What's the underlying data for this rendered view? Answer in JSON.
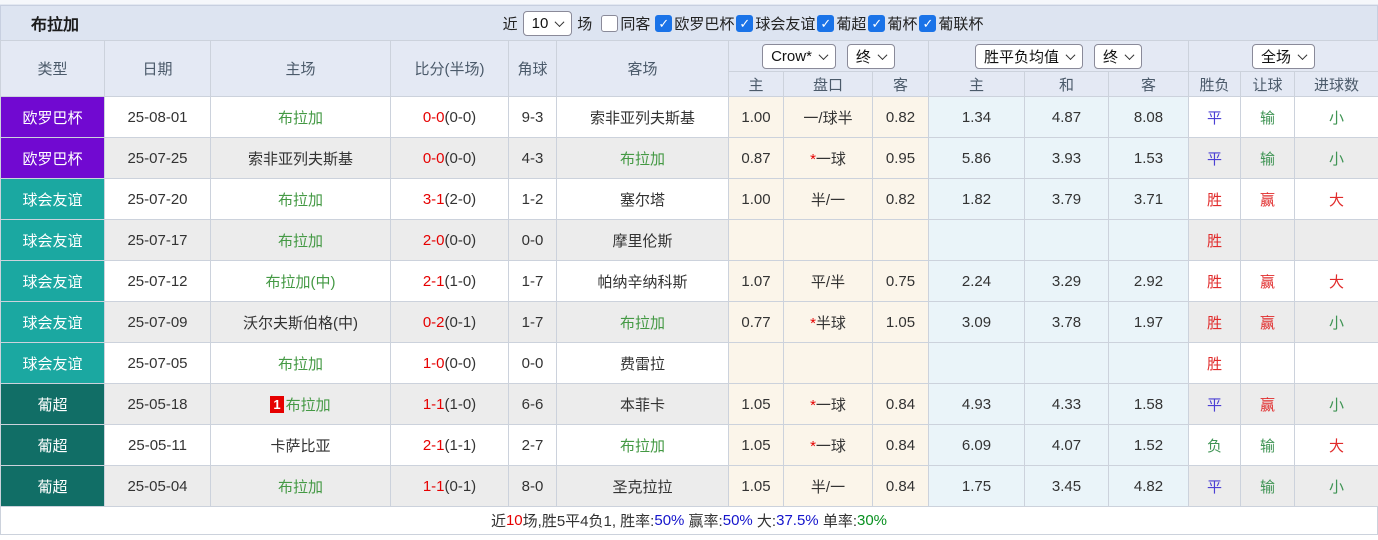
{
  "header": {
    "title": "布拉加",
    "recent_label": "近",
    "recent_value": "10",
    "recent_suffix": "场",
    "same_label": "同客",
    "same_checked": false,
    "filters": [
      {
        "label": "欧罗巴杯",
        "checked": true
      },
      {
        "label": "球会友谊",
        "checked": true
      },
      {
        "label": "葡超",
        "checked": true
      },
      {
        "label": "葡杯",
        "checked": true
      },
      {
        "label": "葡联杯",
        "checked": true
      }
    ]
  },
  "icons": {
    "check": "✓",
    "select_chevron": "v"
  },
  "table": {
    "columns": [
      "类型",
      "日期",
      "主场",
      "比分(半场)",
      "角球",
      "客场"
    ],
    "selects": {
      "odds_source": "Crow*",
      "odds_time": "终",
      "avg_source": "胜平负均值",
      "avg_time": "终",
      "scope": "全场"
    },
    "sub_headers": [
      "主",
      "盘口",
      "客",
      "主",
      "和",
      "客",
      "胜负",
      "让球",
      "进球数"
    ],
    "rows": [
      {
        "comp": "欧罗巴杯",
        "comp_key": "europa",
        "date": "25-08-01",
        "home": {
          "name": "布拉加",
          "team": true,
          "rank": ""
        },
        "score": {
          "ft": "0-0",
          "ht": "(0-0)"
        },
        "corner": "9-3",
        "away": {
          "name": "索非亚列夫斯基",
          "team": false
        },
        "crow": {
          "h": "1.00",
          "star": false,
          "line": "一/球半",
          "a": "0.82"
        },
        "avg": {
          "h": "1.34",
          "d": "4.87",
          "a": "8.08"
        },
        "result": {
          "text": "平",
          "c": "blue"
        },
        "handicap_result": {
          "text": "输",
          "c": "green"
        },
        "goals": {
          "text": "小",
          "c": "green"
        }
      },
      {
        "comp": "欧罗巴杯",
        "comp_key": "europa",
        "date": "25-07-25",
        "home": {
          "name": "索非亚列夫斯基",
          "team": false,
          "rank": ""
        },
        "score": {
          "ft": "0-0",
          "ht": "(0-0)"
        },
        "corner": "4-3",
        "away": {
          "name": "布拉加",
          "team": true
        },
        "crow": {
          "h": "0.87",
          "star": true,
          "line": "一球",
          "a": "0.95"
        },
        "avg": {
          "h": "5.86",
          "d": "3.93",
          "a": "1.53"
        },
        "result": {
          "text": "平",
          "c": "blue"
        },
        "handicap_result": {
          "text": "输",
          "c": "green"
        },
        "goals": {
          "text": "小",
          "c": "green"
        }
      },
      {
        "comp": "球会友谊",
        "comp_key": "friendly",
        "date": "25-07-20",
        "home": {
          "name": "布拉加",
          "team": true,
          "rank": ""
        },
        "score": {
          "ft": "3-1",
          "ht": "(2-0)"
        },
        "corner": "1-2",
        "away": {
          "name": "塞尔塔",
          "team": false
        },
        "crow": {
          "h": "1.00",
          "star": false,
          "line": "半/一",
          "a": "0.82"
        },
        "avg": {
          "h": "1.82",
          "d": "3.79",
          "a": "3.71"
        },
        "result": {
          "text": "胜",
          "c": "red"
        },
        "handicap_result": {
          "text": "赢",
          "c": "red"
        },
        "goals": {
          "text": "大",
          "c": "red"
        }
      },
      {
        "comp": "球会友谊",
        "comp_key": "friendly",
        "date": "25-07-17",
        "home": {
          "name": "布拉加",
          "team": true,
          "rank": ""
        },
        "score": {
          "ft": "2-0",
          "ht": "(0-0)"
        },
        "corner": "0-0",
        "away": {
          "name": "摩里伦斯",
          "team": false
        },
        "crow": {
          "h": "",
          "star": false,
          "line": "",
          "a": ""
        },
        "avg": {
          "h": "",
          "d": "",
          "a": ""
        },
        "result": {
          "text": "胜",
          "c": "red"
        },
        "handicap_result": {
          "text": "",
          "c": ""
        },
        "goals": {
          "text": "",
          "c": ""
        }
      },
      {
        "comp": "球会友谊",
        "comp_key": "friendly",
        "date": "25-07-12",
        "home": {
          "name": "布拉加(中)",
          "team": true,
          "rank": ""
        },
        "score": {
          "ft": "2-1",
          "ht": "(1-0)"
        },
        "corner": "1-7",
        "away": {
          "name": "帕纳辛纳科斯",
          "team": false
        },
        "crow": {
          "h": "1.07",
          "star": false,
          "line": "平/半",
          "a": "0.75"
        },
        "avg": {
          "h": "2.24",
          "d": "3.29",
          "a": "2.92"
        },
        "result": {
          "text": "胜",
          "c": "red"
        },
        "handicap_result": {
          "text": "赢",
          "c": "red"
        },
        "goals": {
          "text": "大",
          "c": "red"
        }
      },
      {
        "comp": "球会友谊",
        "comp_key": "friendly",
        "date": "25-07-09",
        "home": {
          "name": "沃尔夫斯伯格(中)",
          "team": false,
          "rank": ""
        },
        "score": {
          "ft": "0-2",
          "ht": "(0-1)"
        },
        "corner": "1-7",
        "away": {
          "name": "布拉加",
          "team": true
        },
        "crow": {
          "h": "0.77",
          "star": true,
          "line": "半球",
          "a": "1.05"
        },
        "avg": {
          "h": "3.09",
          "d": "3.78",
          "a": "1.97"
        },
        "result": {
          "text": "胜",
          "c": "red"
        },
        "handicap_result": {
          "text": "赢",
          "c": "red"
        },
        "goals": {
          "text": "小",
          "c": "green"
        }
      },
      {
        "comp": "球会友谊",
        "comp_key": "friendly",
        "date": "25-07-05",
        "home": {
          "name": "布拉加",
          "team": true,
          "rank": ""
        },
        "score": {
          "ft": "1-0",
          "ht": "(0-0)"
        },
        "corner": "0-0",
        "away": {
          "name": "费雷拉",
          "team": false
        },
        "crow": {
          "h": "",
          "star": false,
          "line": "",
          "a": ""
        },
        "avg": {
          "h": "",
          "d": "",
          "a": ""
        },
        "result": {
          "text": "胜",
          "c": "red"
        },
        "handicap_result": {
          "text": "",
          "c": ""
        },
        "goals": {
          "text": "",
          "c": ""
        }
      },
      {
        "comp": "葡超",
        "comp_key": "liga",
        "date": "25-05-18",
        "home": {
          "name": "布拉加",
          "team": true,
          "rank": "1"
        },
        "score": {
          "ft": "1-1",
          "ht": "(1-0)"
        },
        "corner": "6-6",
        "away": {
          "name": "本菲卡",
          "team": false
        },
        "crow": {
          "h": "1.05",
          "star": true,
          "line": "一球",
          "a": "0.84"
        },
        "avg": {
          "h": "4.93",
          "d": "4.33",
          "a": "1.58"
        },
        "result": {
          "text": "平",
          "c": "blue"
        },
        "handicap_result": {
          "text": "赢",
          "c": "red"
        },
        "goals": {
          "text": "小",
          "c": "green"
        }
      },
      {
        "comp": "葡超",
        "comp_key": "liga",
        "date": "25-05-11",
        "home": {
          "name": "卡萨比亚",
          "team": false,
          "rank": ""
        },
        "score": {
          "ft": "2-1",
          "ht": "(1-1)"
        },
        "corner": "2-7",
        "away": {
          "name": "布拉加",
          "team": true
        },
        "crow": {
          "h": "1.05",
          "star": true,
          "line": "一球",
          "a": "0.84"
        },
        "avg": {
          "h": "6.09",
          "d": "4.07",
          "a": "1.52"
        },
        "result": {
          "text": "负",
          "c": "green"
        },
        "handicap_result": {
          "text": "输",
          "c": "green"
        },
        "goals": {
          "text": "大",
          "c": "red"
        }
      },
      {
        "comp": "葡超",
        "comp_key": "liga",
        "date": "25-05-04",
        "home": {
          "name": "布拉加",
          "team": true,
          "rank": ""
        },
        "score": {
          "ft": "1-1",
          "ht": "(0-1)"
        },
        "corner": "8-0",
        "away": {
          "name": "圣克拉拉",
          "team": false
        },
        "crow": {
          "h": "1.05",
          "star": false,
          "line": "半/一",
          "a": "0.84"
        },
        "avg": {
          "h": "1.75",
          "d": "3.45",
          "a": "4.82"
        },
        "result": {
          "text": "平",
          "c": "blue"
        },
        "handicap_result": {
          "text": "输",
          "c": "green"
        },
        "goals": {
          "text": "小",
          "c": "green"
        }
      }
    ]
  },
  "summary": {
    "segments": [
      {
        "text": "近",
        "c": "dark"
      },
      {
        "text": "10",
        "c": "red"
      },
      {
        "text": "场,胜5平4负1, 胜率:",
        "c": "dark"
      },
      {
        "text": "50%",
        "c": "blue"
      },
      {
        "text": " 赢率:",
        "c": "dark"
      },
      {
        "text": "50%",
        "c": "blue"
      },
      {
        "text": " 大:",
        "c": "dark"
      },
      {
        "text": "37.5%",
        "c": "blue"
      },
      {
        "text": " 单率:",
        "c": "dark"
      },
      {
        "text": "30%",
        "c": "green"
      }
    ]
  },
  "colors": {
    "europa": "#7109d1",
    "friendly": "#1ba8a1",
    "liga": "#116e66",
    "team_green": "#449944",
    "plain_team": "#333333",
    "score_red": "#e60000",
    "res_red": "#e12b2b",
    "res_blue": "#4b3fd4",
    "res_green": "#3f9454",
    "sum_dark": "#333333",
    "sum_blue": "#1515cc",
    "sum_green": "#089020",
    "checkbox_blue": "#1a73e8"
  }
}
